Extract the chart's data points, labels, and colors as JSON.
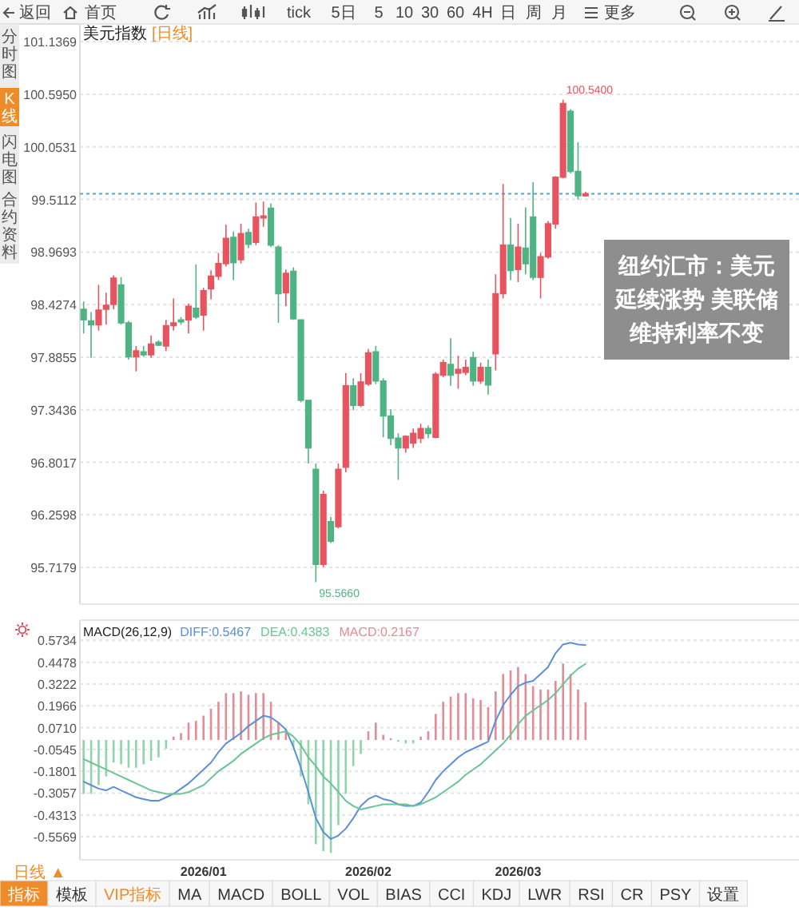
{
  "chart_data": [
    {
      "type": "candlestick",
      "title": "美元指数",
      "subtitle": "[日线]",
      "categories": [
        null,
        null,
        null,
        null,
        null,
        null,
        null,
        null,
        null,
        null,
        null,
        null,
        null,
        null,
        null,
        null,
        null,
        null,
        null,
        null,
        null,
        null,
        null,
        null,
        null,
        null,
        null,
        null,
        null,
        null,
        null,
        null,
        null,
        null,
        null,
        null,
        null,
        null,
        null,
        null,
        null,
        null,
        null,
        null,
        null,
        null,
        null,
        null,
        null,
        null,
        null,
        null,
        null,
        null,
        null,
        null,
        null,
        null,
        null,
        null,
        null,
        null,
        null,
        null,
        null,
        null,
        null,
        null
      ],
      "ohlc": [
        [
          98.38,
          98.46,
          98.13,
          98.27
        ],
        [
          98.26,
          98.35,
          97.88,
          98.22
        ],
        [
          98.22,
          98.63,
          98.16,
          98.37
        ],
        [
          98.38,
          98.55,
          98.22,
          98.42
        ],
        [
          98.43,
          98.73,
          98.38,
          98.7
        ],
        [
          98.63,
          98.71,
          98.22,
          98.24
        ],
        [
          98.24,
          98.26,
          97.86,
          97.89
        ],
        [
          97.89,
          98.0,
          97.74,
          97.95
        ],
        [
          97.94,
          98.0,
          97.89,
          97.91
        ],
        [
          97.91,
          98.11,
          97.88,
          98.02
        ],
        [
          98.04,
          98.06,
          98.0,
          98.01
        ],
        [
          98.0,
          98.27,
          97.95,
          98.21
        ],
        [
          98.21,
          98.49,
          98.16,
          98.24
        ],
        [
          98.27,
          98.3,
          98.22,
          98.25
        ],
        [
          98.27,
          98.44,
          98.13,
          98.41
        ],
        [
          98.39,
          98.84,
          98.28,
          98.3
        ],
        [
          98.32,
          98.6,
          98.16,
          98.57
        ],
        [
          98.59,
          98.78,
          98.48,
          98.72
        ],
        [
          98.72,
          98.96,
          98.68,
          98.85
        ],
        [
          98.85,
          99.25,
          98.82,
          99.11
        ],
        [
          99.12,
          99.18,
          98.68,
          98.86
        ],
        [
          98.89,
          99.26,
          98.85,
          99.16
        ],
        [
          99.17,
          99.21,
          99.01,
          99.05
        ],
        [
          99.07,
          99.48,
          99.04,
          99.33
        ],
        [
          99.32,
          99.49,
          99.23,
          99.34
        ],
        [
          99.42,
          99.47,
          99.02,
          99.04
        ],
        [
          99.02,
          99.04,
          98.24,
          98.54
        ],
        [
          98.55,
          98.79,
          98.41,
          98.75
        ],
        [
          98.77,
          98.81,
          98.27,
          98.28
        ],
        [
          98.27,
          98.27,
          97.42,
          97.44
        ],
        [
          97.44,
          97.44,
          96.79,
          96.95
        ],
        [
          96.73,
          96.79,
          95.566,
          95.75
        ],
        [
          95.75,
          96.51,
          95.72,
          96.47
        ],
        [
          96.19,
          96.24,
          95.97,
          95.99
        ],
        [
          96.14,
          96.79,
          96.12,
          96.73
        ],
        [
          96.75,
          97.72,
          96.7,
          97.59
        ],
        [
          97.59,
          97.67,
          97.34,
          97.39
        ],
        [
          97.39,
          97.72,
          97.37,
          97.63
        ],
        [
          97.61,
          97.97,
          97.59,
          97.93
        ],
        [
          97.94,
          98.0,
          97.61,
          97.64
        ],
        [
          97.64,
          97.67,
          97.06,
          97.28
        ],
        [
          97.28,
          97.35,
          96.98,
          97.05
        ],
        [
          97.05,
          97.1,
          96.62,
          96.95
        ],
        [
          96.95,
          97.08,
          96.9,
          97.07
        ],
        [
          97.0,
          97.15,
          96.95,
          97.1
        ],
        [
          97.05,
          97.2,
          97.0,
          97.15
        ],
        [
          97.15,
          97.18,
          97.05,
          97.1
        ],
        [
          97.06,
          97.73,
          97.05,
          97.71
        ],
        [
          97.7,
          97.86,
          97.68,
          97.83
        ],
        [
          97.81,
          98.08,
          97.59,
          97.7
        ],
        [
          97.72,
          97.9,
          97.56,
          97.76
        ],
        [
          97.73,
          97.86,
          97.7,
          97.78
        ],
        [
          97.88,
          97.94,
          97.59,
          97.64
        ],
        [
          97.64,
          97.83,
          97.61,
          97.78
        ],
        [
          97.78,
          97.86,
          97.5,
          97.6
        ],
        [
          97.92,
          98.74,
          97.75,
          98.54
        ],
        [
          98.54,
          99.67,
          98.49,
          99.04
        ],
        [
          99.04,
          99.32,
          98.68,
          98.78
        ],
        [
          98.79,
          99.26,
          98.66,
          99.02
        ],
        [
          99.01,
          99.43,
          98.74,
          98.85
        ],
        [
          99.33,
          99.69,
          98.68,
          98.71
        ],
        [
          98.71,
          98.96,
          98.49,
          98.92
        ],
        [
          98.92,
          99.29,
          98.9,
          99.26
        ],
        [
          99.26,
          99.75,
          99.21,
          99.74
        ],
        [
          99.74,
          100.54,
          99.73,
          100.5
        ],
        [
          100.42,
          100.44,
          99.78,
          99.8
        ],
        [
          99.8,
          100.1,
          99.51,
          99.55
        ],
        [
          99.55,
          99.59,
          99.54,
          99.57
        ]
      ],
      "colors": [
        "#4fb383",
        "#4fb383",
        "#e8545f",
        "#e8545f",
        "#e8545f",
        "#4fb383",
        "#4fb383",
        "#e8545f",
        "#4fb383",
        "#e8545f",
        "#4fb383",
        "#e8545f",
        "#e8545f",
        "#4fb383",
        "#e8545f",
        "#4fb383",
        "#e8545f",
        "#e8545f",
        "#e8545f",
        "#e8545f",
        "#4fb383",
        "#e8545f",
        "#4fb383",
        "#e8545f",
        "#e8545f",
        "#4fb383",
        "#4fb383",
        "#e8545f",
        "#4fb383",
        "#4fb383",
        "#4fb383",
        "#4fb383",
        "#e8545f",
        "#4fb383",
        "#e8545f",
        "#e8545f",
        "#4fb383",
        "#e8545f",
        "#e8545f",
        "#4fb383",
        "#4fb383",
        "#4fb383",
        "#4fb383",
        "#e8545f",
        "#e8545f",
        "#e8545f",
        "#4fb383",
        "#e8545f",
        "#e8545f",
        "#4fb383",
        "#e8545f",
        "#e8545f",
        "#4fb383",
        "#e8545f",
        "#4fb383",
        "#e8545f",
        "#e8545f",
        "#4fb383",
        "#e8545f",
        "#4fb383",
        "#4fb383",
        "#e8545f",
        "#e8545f",
        "#e8545f",
        "#e8545f",
        "#4fb383",
        "#4fb383",
        "#e8545f"
      ],
      "ylim": [
        95.34,
        101.32
      ],
      "yticks": [
        101.1369,
        {
          "value": 100.595,
          "label": "100.5950"
        },
        100.0531,
        99.5112,
        98.9693,
        98.4274,
        97.8855,
        97.3436,
        96.8017,
        96.2598,
        95.7179
      ],
      "grid": "y",
      "ref_lines": [
        {
          "axis": "y",
          "value": 99.57,
          "color": "#4aa8d8",
          "line_style": "dotted"
        }
      ],
      "annotations": [
        "纽约汇市：美元延续涨势 美联储维持利率不变",
        "100.5400",
        "95.5660",
        "返回",
        "首页",
        "tick",
        "5日",
        "5",
        "10",
        "30",
        "60",
        "4H",
        "日",
        "周",
        "月",
        "更多",
        "分时图",
        "K线",
        "闪电图",
        "合约资料"
      ]
    },
    {
      "type": "bar",
      "title": "MACD(26,12,9)",
      "categories": [
        null,
        null,
        null,
        null,
        null,
        null,
        null,
        null,
        null,
        null,
        null,
        null,
        null,
        null,
        null,
        null,
        "2026/01",
        null,
        null,
        null,
        null,
        null,
        null,
        null,
        null,
        null,
        null,
        null,
        null,
        null,
        null,
        null,
        null,
        null,
        null,
        null,
        null,
        null,
        "2026/02",
        null,
        null,
        null,
        null,
        null,
        null,
        null,
        null,
        null,
        null,
        null,
        null,
        null,
        null,
        null,
        null,
        null,
        null,
        null,
        "2026/03",
        null,
        null,
        null,
        null,
        null,
        null,
        null,
        null,
        null
      ],
      "series": [
        {
          "name": "DIFF:0.5467",
          "type": "line",
          "color": "#5b8fd6",
          "values": [
            -0.24,
            -0.26,
            -0.28,
            -0.29,
            -0.27,
            -0.29,
            -0.31,
            -0.33,
            -0.34,
            -0.35,
            -0.35,
            -0.33,
            -0.31,
            -0.28,
            -0.25,
            -0.21,
            -0.17,
            -0.13,
            -0.07,
            -0.02,
            0.01,
            0.04,
            0.08,
            0.11,
            0.14,
            0.13,
            0.1,
            0.06,
            -0.04,
            -0.16,
            -0.3,
            -0.45,
            -0.53,
            -0.57,
            -0.55,
            -0.51,
            -0.45,
            -0.38,
            -0.34,
            -0.32,
            -0.34,
            -0.35,
            -0.37,
            -0.38,
            -0.38,
            -0.36,
            -0.3,
            -0.23,
            -0.18,
            -0.14,
            -0.1,
            -0.07,
            -0.05,
            -0.03,
            -0.01,
            0.11,
            0.2,
            0.26,
            0.31,
            0.33,
            0.34,
            0.38,
            0.42,
            0.5,
            0.55,
            0.56,
            0.55,
            0.5467
          ]
        },
        {
          "name": "DEA:0.4383",
          "type": "line",
          "color": "#69c593",
          "values": [
            -0.11,
            -0.13,
            -0.15,
            -0.17,
            -0.19,
            -0.21,
            -0.23,
            -0.25,
            -0.27,
            -0.29,
            -0.3,
            -0.31,
            -0.31,
            -0.31,
            -0.3,
            -0.28,
            -0.26,
            -0.22,
            -0.18,
            -0.15,
            -0.12,
            -0.08,
            -0.05,
            -0.02,
            0.01,
            0.03,
            0.04,
            0.05,
            0.02,
            -0.03,
            -0.1,
            -0.15,
            -0.21,
            -0.25,
            -0.3,
            -0.35,
            -0.38,
            -0.4,
            -0.39,
            -0.38,
            -0.37,
            -0.37,
            -0.37,
            -0.37,
            -0.38,
            -0.37,
            -0.35,
            -0.33,
            -0.3,
            -0.27,
            -0.24,
            -0.2,
            -0.17,
            -0.14,
            -0.1,
            -0.06,
            -0.02,
            0.03,
            0.09,
            0.14,
            0.17,
            0.2,
            0.23,
            0.27,
            0.32,
            0.37,
            0.41,
            0.4383
          ]
        },
        {
          "name": "MACD:0.2167",
          "type": "bar",
          "color": "#e38c96",
          "colors": [
            "#8fd4ac",
            "#8fd4ac",
            "#8fd4ac",
            "#8fd4ac",
            "#8fd4ac",
            "#8fd4ac",
            "#8fd4ac",
            "#8fd4ac",
            "#8fd4ac",
            "#8fd4ac",
            "#8fd4ac",
            "#8fd4ac",
            "#e38c96",
            "#e38c96",
            "#e38c96",
            "#e38c96",
            "#e38c96",
            "#e38c96",
            "#e38c96",
            "#e38c96",
            "#e38c96",
            "#e38c96",
            "#e38c96",
            "#e38c96",
            "#e38c96",
            "#e38c96",
            "#e38c96",
            "#e38c96",
            "#8fd4ac",
            "#8fd4ac",
            "#8fd4ac",
            "#8fd4ac",
            "#8fd4ac",
            "#8fd4ac",
            "#8fd4ac",
            "#8fd4ac",
            "#8fd4ac",
            "#8fd4ac",
            "#e38c96",
            "#e38c96",
            "#e38c96",
            "#e38c96",
            "#8fd4ac",
            "#8fd4ac",
            "#8fd4ac",
            "#e38c96",
            "#e38c96",
            "#e38c96",
            "#e38c96",
            "#e38c96",
            "#e38c96",
            "#e38c96",
            "#e38c96",
            "#e38c96",
            "#e38c96",
            "#e38c96",
            "#e38c96",
            "#e38c96",
            "#e38c96",
            "#e38c96",
            "#e38c96",
            "#e38c96",
            "#e38c96",
            "#e38c96",
            "#e38c96",
            "#e38c96",
            "#e38c96",
            "#e38c96"
          ],
          "values": [
            -0.31,
            -0.31,
            -0.26,
            -0.21,
            -0.13,
            -0.14,
            -0.16,
            -0.16,
            -0.14,
            -0.12,
            -0.1,
            -0.05,
            0.02,
            0.04,
            0.1,
            0.11,
            0.14,
            0.18,
            0.22,
            0.27,
            0.27,
            0.28,
            0.26,
            0.27,
            0.27,
            0.22,
            0.1,
            0.06,
            -0.04,
            -0.21,
            -0.37,
            -0.6,
            -0.64,
            -0.65,
            -0.49,
            -0.31,
            -0.15,
            -0.08,
            0.05,
            0.1,
            0.03,
            0.01,
            -0.01,
            -0.02,
            -0.02,
            0.02,
            0.05,
            0.15,
            0.22,
            0.25,
            0.27,
            0.27,
            0.24,
            0.23,
            0.19,
            0.28,
            0.38,
            0.4,
            0.42,
            0.38,
            0.31,
            0.29,
            0.29,
            0.34,
            0.44,
            0.38,
            0.29,
            0.2167
          ]
        }
      ],
      "ylim": [
        -0.69,
        0.69
      ],
      "yticks": [
        0.5734,
        0.4478,
        0.3222,
        0.1966,
        {
          "value": 0.071,
          "label": "0.0710"
        },
        -0.0545,
        -0.1801,
        -0.3057,
        -0.4313,
        -0.5569
      ],
      "grid": "y",
      "legend": "top left",
      "annotations": [
        "日线 ▲",
        "指标",
        "模板",
        "VIP指标",
        "MA",
        "MACD",
        "BOLL",
        "VOL",
        "BIAS",
        "CCI",
        "KDJ",
        "LWR",
        "RSI",
        "CR",
        "PSY",
        "设置"
      ]
    }
  ]
}
